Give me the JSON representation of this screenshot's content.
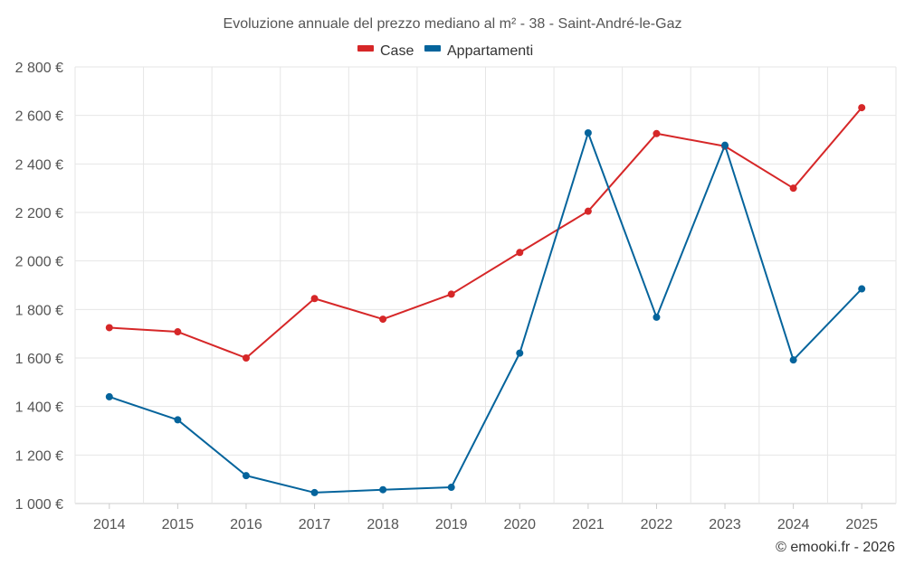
{
  "chart_data": {
    "type": "line",
    "title": "Evoluzione annuale del prezzo mediano al m² - 38 - Saint-André-le-Gaz",
    "categories": [
      "2014",
      "2015",
      "2016",
      "2017",
      "2018",
      "2019",
      "2020",
      "2021",
      "2022",
      "2023",
      "2024",
      "2025"
    ],
    "series": [
      {
        "name": "Case",
        "color": "#d62728",
        "values": [
          1725,
          1708,
          1600,
          1845,
          1760,
          1863,
          2035,
          2205,
          2525,
          2473,
          2300,
          2632
        ]
      },
      {
        "name": "Appartamenti",
        "color": "#05649c",
        "values": [
          1440,
          1345,
          1115,
          1045,
          1057,
          1067,
          1620,
          2528,
          1768,
          2477,
          1592,
          1885
        ]
      }
    ],
    "ylim": [
      1000,
      2800
    ],
    "yticks": [
      1000,
      1200,
      1400,
      1600,
      1800,
      2000,
      2200,
      2400,
      2600,
      2800
    ],
    "ytick_labels": [
      "1 000 €",
      "1 200 €",
      "1 400 €",
      "1 600 €",
      "1 800 €",
      "2 000 €",
      "2 200 €",
      "2 400 €",
      "2 600 €",
      "2 800 €"
    ],
    "xlabel": "",
    "ylabel": "",
    "legend_position": "top-center",
    "grid": true
  },
  "credit": "© emooki.fr - 2026"
}
